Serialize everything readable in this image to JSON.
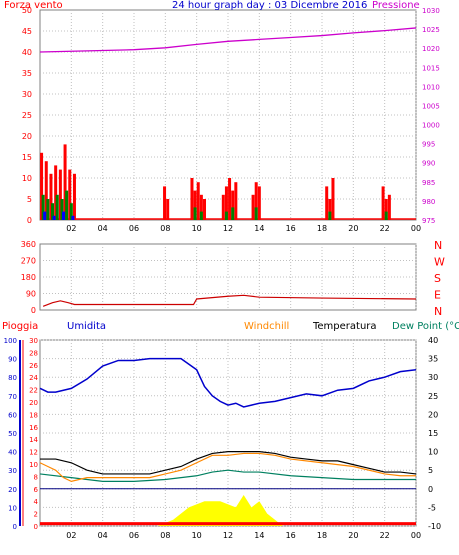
{
  "header": {
    "wind_label": "Forza vento",
    "title": "24 hour graph day : 03 Dicembre 2016",
    "pressure_label": "Pressione"
  },
  "colors": {
    "wind_gust": "#ff0000",
    "wind_avg": "#008000",
    "wind_min": "#0000ff",
    "pressure": "#cc00cc",
    "direction": "#cc0000",
    "humidity": "#0000cc",
    "windchill": "#ff8800",
    "temperature": "#000000",
    "dewpoint": "#008060",
    "rain": "#ffff00",
    "rain_total": "#ff0000",
    "grid": "#c0c0c0"
  },
  "bottom_header": {
    "rain_label": "Pioggia",
    "humidity_label": "Umidita",
    "windchill_label": "Windchill",
    "temperature_label": "Temperatura",
    "dewpoint_label": "Dew Point (°C"
  },
  "chart_data": [
    {
      "type": "bar",
      "id": "wind",
      "ylim": [
        0,
        50
      ],
      "yticks": [
        "0",
        "5",
        "10",
        "15",
        "20",
        "25",
        "30",
        "35",
        "40",
        "45",
        "50"
      ],
      "x_labels": [
        "02",
        "04",
        "06",
        "08",
        "10",
        "12",
        "14",
        "16",
        "18",
        "20",
        "22",
        "00"
      ],
      "y2lim": [
        975,
        1030
      ],
      "y2ticks": [
        "975",
        "980",
        "985",
        "990",
        "995",
        "1000",
        "1005",
        "1010",
        "1015",
        "1020",
        "1025",
        "1030"
      ],
      "series": [
        {
          "name": "gust",
          "x": [
            0.1,
            0.4,
            0.7,
            1.0,
            1.3,
            1.6,
            1.9,
            2.2,
            7.95,
            8.15,
            9.7,
            9.9,
            10.1,
            10.3,
            10.5,
            11.7,
            11.9,
            12.1,
            12.3,
            12.5,
            13.6,
            13.8,
            14.0,
            18.3,
            18.5,
            18.7,
            21.9,
            22.1,
            22.3
          ],
          "values": [
            16,
            14,
            11,
            13,
            12,
            18,
            12,
            11,
            8,
            5,
            10,
            7,
            9,
            6,
            5,
            6,
            8,
            10,
            7,
            9,
            6,
            9,
            8,
            8,
            5,
            10,
            8,
            5,
            6
          ]
        },
        {
          "name": "avg",
          "x": [
            0.2,
            0.5,
            0.8,
            1.1,
            1.4,
            1.7,
            2.0,
            9.9,
            10.3,
            11.9,
            12.3,
            13.8,
            18.5,
            22.1
          ],
          "values": [
            6,
            5,
            4,
            6,
            5,
            7,
            4,
            3,
            2,
            2,
            3,
            3,
            2,
            2
          ]
        },
        {
          "name": "min",
          "x": [
            0.3,
            0.9,
            1.5,
            2.1
          ],
          "values": [
            2,
            1,
            2,
            1
          ]
        }
      ],
      "pressure": {
        "x": [
          0,
          2,
          4,
          6,
          8,
          10,
          12,
          14,
          16,
          18,
          20,
          22,
          24
        ],
        "values": [
          1019,
          1019.2,
          1019.4,
          1019.6,
          1020.1,
          1021.0,
          1021.8,
          1022.3,
          1022.8,
          1023.3,
          1024.0,
          1024.6,
          1025.3
        ]
      }
    },
    {
      "type": "line",
      "id": "direction",
      "ylim": [
        0,
        360
      ],
      "yticks": [
        "0",
        "90",
        "180",
        "270",
        "360"
      ],
      "y2ticks": [
        "N",
        "W",
        "S",
        "E",
        "N"
      ],
      "x": [
        0.2,
        0.8,
        1.3,
        1.8,
        2.2,
        9.8,
        10.0,
        12.0,
        13.0,
        14.0,
        18.0,
        24
      ],
      "values": [
        20,
        40,
        50,
        40,
        30,
        30,
        60,
        75,
        80,
        70,
        65,
        60
      ]
    },
    {
      "type": "line",
      "id": "weather",
      "x_labels": [
        "02",
        "04",
        "06",
        "08",
        "10",
        "12",
        "14",
        "16",
        "18",
        "20",
        "22",
        "00"
      ],
      "humidity_axis": [
        "0",
        "10",
        "20",
        "30",
        "40",
        "50",
        "60",
        "70",
        "80",
        "90",
        "100"
      ],
      "rain_axis": [
        "0",
        "2",
        "4",
        "6",
        "8",
        "10",
        "12",
        "14",
        "16",
        "18",
        "20",
        "22",
        "24",
        "26",
        "28",
        "30"
      ],
      "temp_axis": [
        "-10",
        "-5",
        "0",
        "5",
        "10",
        "15",
        "20",
        "25",
        "30",
        "35",
        "40"
      ],
      "temp_lim": [
        -10,
        40
      ],
      "humidity": {
        "x": [
          0,
          0.5,
          1,
          2,
          3,
          4,
          5,
          6,
          7,
          8,
          9,
          10,
          10.5,
          11,
          11.5,
          12,
          12.5,
          13,
          13.5,
          14,
          15,
          16,
          17,
          18,
          19,
          20,
          21,
          22,
          23,
          24
        ],
        "values": [
          74,
          72,
          72,
          74,
          79,
          86,
          89,
          89,
          90,
          90,
          90,
          84,
          75,
          70,
          67,
          65,
          66,
          64,
          65,
          66,
          67,
          69,
          71,
          70,
          73,
          74,
          78,
          80,
          83,
          84
        ]
      },
      "temperature": {
        "x": [
          0,
          1,
          2,
          3,
          4,
          5,
          6,
          7,
          8,
          9,
          10,
          11,
          12,
          13,
          14,
          15,
          16,
          17,
          18,
          19,
          20,
          21,
          22,
          23,
          24
        ],
        "values": [
          8,
          8,
          7,
          5,
          4,
          4,
          4,
          4,
          5,
          6,
          8,
          9.5,
          10,
          10,
          10,
          9.5,
          8.5,
          8,
          7.5,
          7.5,
          6.5,
          5.5,
          4.5,
          4.5,
          4
        ]
      },
      "windchill": {
        "x": [
          0,
          0.5,
          1,
          1.5,
          2,
          3,
          7,
          8,
          9,
          10,
          11,
          12,
          13,
          14,
          15,
          16,
          18,
          20,
          22,
          23,
          24
        ],
        "values": [
          7,
          6,
          5,
          3,
          2,
          3,
          3,
          4,
          5,
          7,
          9,
          9,
          9.5,
          9.5,
          9,
          8,
          7,
          6,
          4,
          3.5,
          3.5
        ]
      },
      "dewpoint": {
        "x": [
          0,
          2,
          4,
          6,
          8,
          9,
          10,
          11,
          12,
          13,
          14,
          16,
          18,
          20,
          22,
          24
        ],
        "values": [
          4,
          3,
          2,
          2,
          2.5,
          3,
          3.5,
          4.5,
          5,
          4.5,
          4.5,
          3.5,
          3,
          2.5,
          2.5,
          2.5
        ]
      },
      "rain": {
        "x": [
          7.5,
          8.5,
          9.5,
          10.5,
          11.5,
          12.5,
          13.0,
          13.5,
          14,
          14.5,
          15.5
        ],
        "values": [
          0,
          1,
          3,
          4,
          4,
          3,
          5,
          3,
          4,
          2,
          0
        ]
      },
      "rain_total": 0.3
    }
  ]
}
